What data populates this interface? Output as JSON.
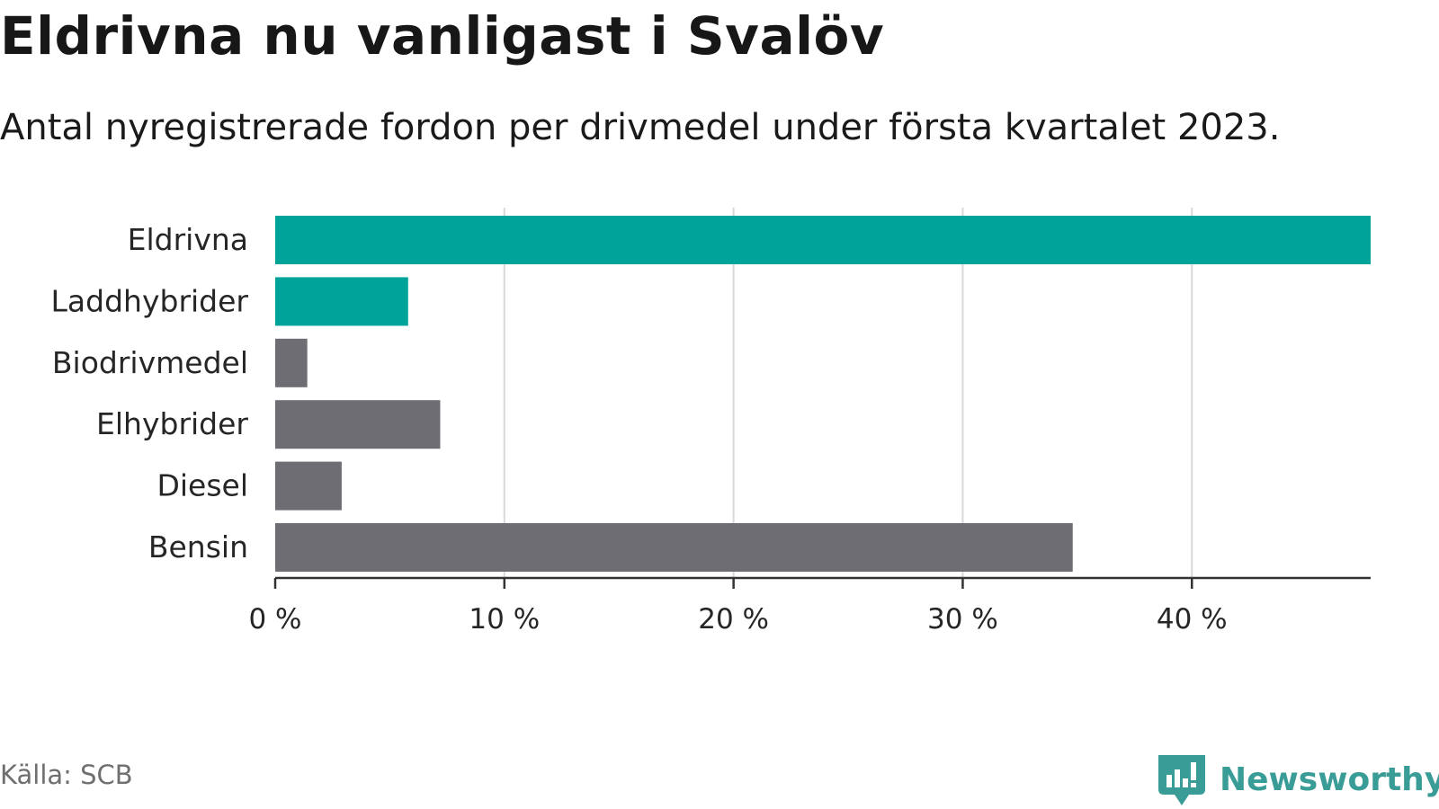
{
  "title": "Eldrivna nu vanligast i Svalöv",
  "subtitle": "Antal nyregistrerade fordon per drivmedel under första kvartalet 2023.",
  "source": "Källa: SCB",
  "brand": {
    "name": "Newsworthy",
    "color": "#3a9c96",
    "icon": "newsworthy-logo-icon"
  },
  "colors": {
    "highlight": "#00a39a",
    "default": "#6e6d73",
    "grid": "#d8d8d8",
    "axis": "#333333"
  },
  "chart_data": {
    "type": "bar",
    "orientation": "horizontal",
    "title": "Eldrivna nu vanligast i Svalöv",
    "subtitle": "Antal nyregistrerade fordon per drivmedel under första kvartalet 2023.",
    "categories": [
      "Eldrivna",
      "Laddhybrider",
      "Biodrivmedel",
      "Elhybrider",
      "Diesel",
      "Bensin"
    ],
    "values": [
      47.8,
      5.8,
      1.4,
      7.2,
      2.9,
      34.8
    ],
    "highlight": [
      true,
      true,
      false,
      false,
      false,
      false
    ],
    "unit": "%",
    "xlim": [
      0,
      47.8
    ],
    "ticks": [
      0,
      10,
      20,
      30,
      40
    ],
    "tick_labels": [
      "0 %",
      "10 %",
      "20 %",
      "30 %",
      "40 %"
    ],
    "xlabel": "",
    "ylabel": "",
    "grid": "vertical",
    "legend": "none"
  }
}
